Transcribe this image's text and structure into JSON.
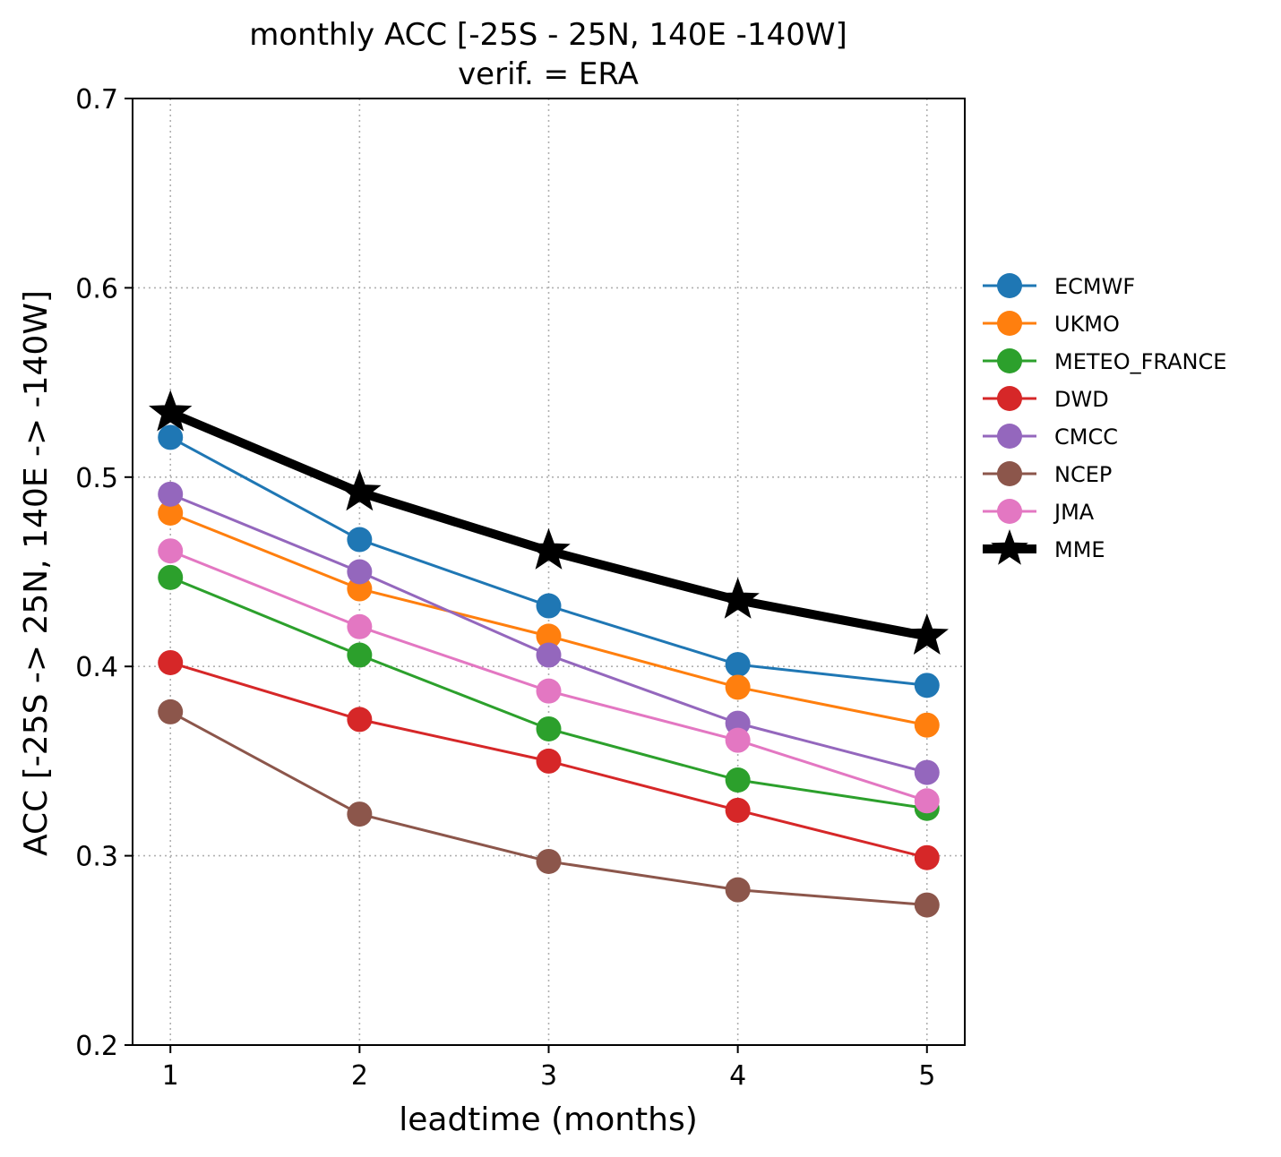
{
  "chart_data": {
    "type": "line",
    "title": "monthly ACC [-25S - 25N, 140E -140W]",
    "subtitle": "verif. = ERA",
    "xlabel": "leadtime (months)",
    "ylabel": "ACC [-25S -> 25N, 140E -> -140W]",
    "x": [
      1,
      2,
      3,
      4,
      5
    ],
    "x_ticks": [
      "1",
      "2",
      "3",
      "4",
      "5"
    ],
    "xlim": [
      0.8,
      5.2
    ],
    "ylim": [
      0.2,
      0.7
    ],
    "y_ticks": [
      "0.2",
      "0.3",
      "0.4",
      "0.5",
      "0.6",
      "0.7"
    ],
    "grid": true,
    "legend_position": "right, outside plot",
    "series": [
      {
        "name": "ECMWF",
        "color": "#1f77b4",
        "marker": "circle",
        "values": [
          0.521,
          0.467,
          0.432,
          0.401,
          0.39
        ]
      },
      {
        "name": "UKMO",
        "color": "#ff7f0e",
        "marker": "circle",
        "values": [
          0.481,
          0.441,
          0.416,
          0.389,
          0.369
        ]
      },
      {
        "name": "METEO_FRANCE",
        "color": "#2ca02c",
        "marker": "circle",
        "values": [
          0.447,
          0.406,
          0.367,
          0.34,
          0.325
        ]
      },
      {
        "name": "DWD",
        "color": "#d62728",
        "marker": "circle",
        "values": [
          0.402,
          0.372,
          0.35,
          0.324,
          0.299
        ]
      },
      {
        "name": "CMCC",
        "color": "#9467bd",
        "marker": "circle",
        "values": [
          0.491,
          0.45,
          0.406,
          0.37,
          0.344
        ]
      },
      {
        "name": "NCEP",
        "color": "#8c564b",
        "marker": "circle",
        "values": [
          0.376,
          0.322,
          0.297,
          0.282,
          0.274
        ]
      },
      {
        "name": "JMA",
        "color": "#e377c2",
        "marker": "circle",
        "values": [
          0.461,
          0.421,
          0.387,
          0.361,
          0.329
        ]
      },
      {
        "name": "MME",
        "color": "#000000",
        "marker": "star",
        "values": [
          0.534,
          0.492,
          0.461,
          0.435,
          0.416
        ]
      }
    ]
  }
}
